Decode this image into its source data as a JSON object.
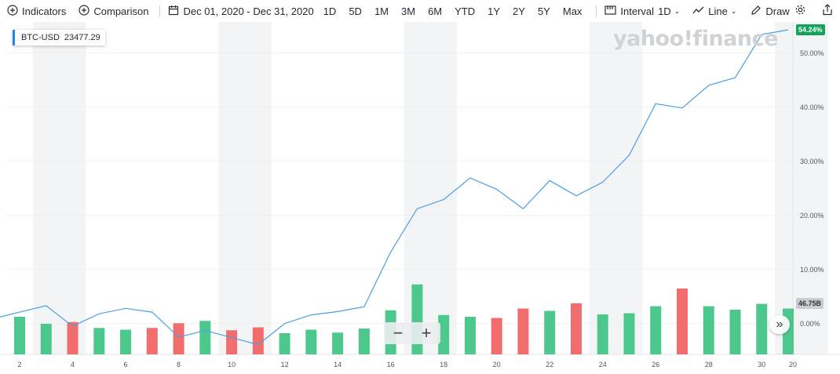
{
  "toolbar": {
    "indicators_label": "Indicators",
    "comparison_label": "Comparison",
    "date_range": "Dec 01, 2020 - Dec 31, 2020",
    "ranges": [
      "1D",
      "5D",
      "1M",
      "3M",
      "6M",
      "YTD",
      "1Y",
      "2Y",
      "5Y",
      "Max"
    ],
    "interval_label": "Interval",
    "interval_value": "1D",
    "chart_type_label": "Line",
    "draw_label": "Draw"
  },
  "legend": {
    "symbol": "BTC-USD",
    "value": "23477.29",
    "color": "#1e88e5"
  },
  "watermark": "yahoo!finance",
  "badges": {
    "last_change": "54.24%",
    "last_volume": "46.75B"
  },
  "colors": {
    "line": "#4a9ee6",
    "up": "#4cc88c",
    "down": "#f26d6d",
    "badge_up": "#12a25a",
    "badge_volume": "#c8ccd1"
  },
  "chart_data": {
    "type": "line",
    "series": [
      {
        "name": "BTC-USD",
        "x": [
          1,
          2,
          3,
          4,
          5,
          6,
          7,
          8,
          9,
          10,
          11,
          12,
          13,
          14,
          15,
          16,
          17,
          18,
          19,
          20,
          21,
          22,
          23,
          24,
          25,
          26,
          27,
          28,
          29,
          30,
          31
        ],
        "values": [
          0.9,
          2.1,
          3.3,
          -0.5,
          1.8,
          2.8,
          2.1,
          -2.5,
          -1.3,
          -2.6,
          -3.9,
          0.0,
          1.6,
          2.2,
          3.1,
          13.2,
          21.2,
          22.9,
          26.9,
          24.8,
          21.2,
          26.4,
          23.6,
          26.1,
          31.1,
          40.6,
          39.8,
          44.0,
          45.4,
          53.4,
          54.24
        ]
      }
    ],
    "volume": {
      "x": [
        2,
        3,
        4,
        5,
        6,
        7,
        8,
        9,
        10,
        11,
        12,
        13,
        14,
        15,
        16,
        17,
        18,
        19,
        20,
        21,
        22,
        23,
        24,
        25,
        26,
        27,
        28,
        29,
        30,
        31
      ],
      "direction": [
        "up",
        "up",
        "down",
        "up",
        "up",
        "down",
        "down",
        "up",
        "down",
        "down",
        "up",
        "up",
        "up",
        "up",
        "up",
        "up",
        "up",
        "up",
        "down",
        "down",
        "up",
        "down",
        "up",
        "up",
        "up",
        "down",
        "up",
        "up",
        "up",
        "up"
      ],
      "relative": [
        0.64,
        0.52,
        0.55,
        0.45,
        0.42,
        0.45,
        0.53,
        0.57,
        0.41,
        0.46,
        0.36,
        0.42,
        0.37,
        0.44,
        0.75,
        1.19,
        0.67,
        0.64,
        0.62,
        0.78,
        0.74,
        0.87,
        0.68,
        0.7,
        0.82,
        1.12,
        0.82,
        0.76,
        0.86,
        0.78
      ]
    },
    "x_ticks": [
      "2",
      "4",
      "6",
      "8",
      "10",
      "12",
      "14",
      "16",
      "18",
      "20",
      "22",
      "24",
      "26",
      "28",
      "30",
      "20"
    ],
    "y_ticks": [
      "50.00%",
      "40.00%",
      "30.00%",
      "20.00%",
      "10.00%",
      "0.00%"
    ],
    "ylim": [
      -5.7,
      55.7
    ],
    "grid": true
  }
}
